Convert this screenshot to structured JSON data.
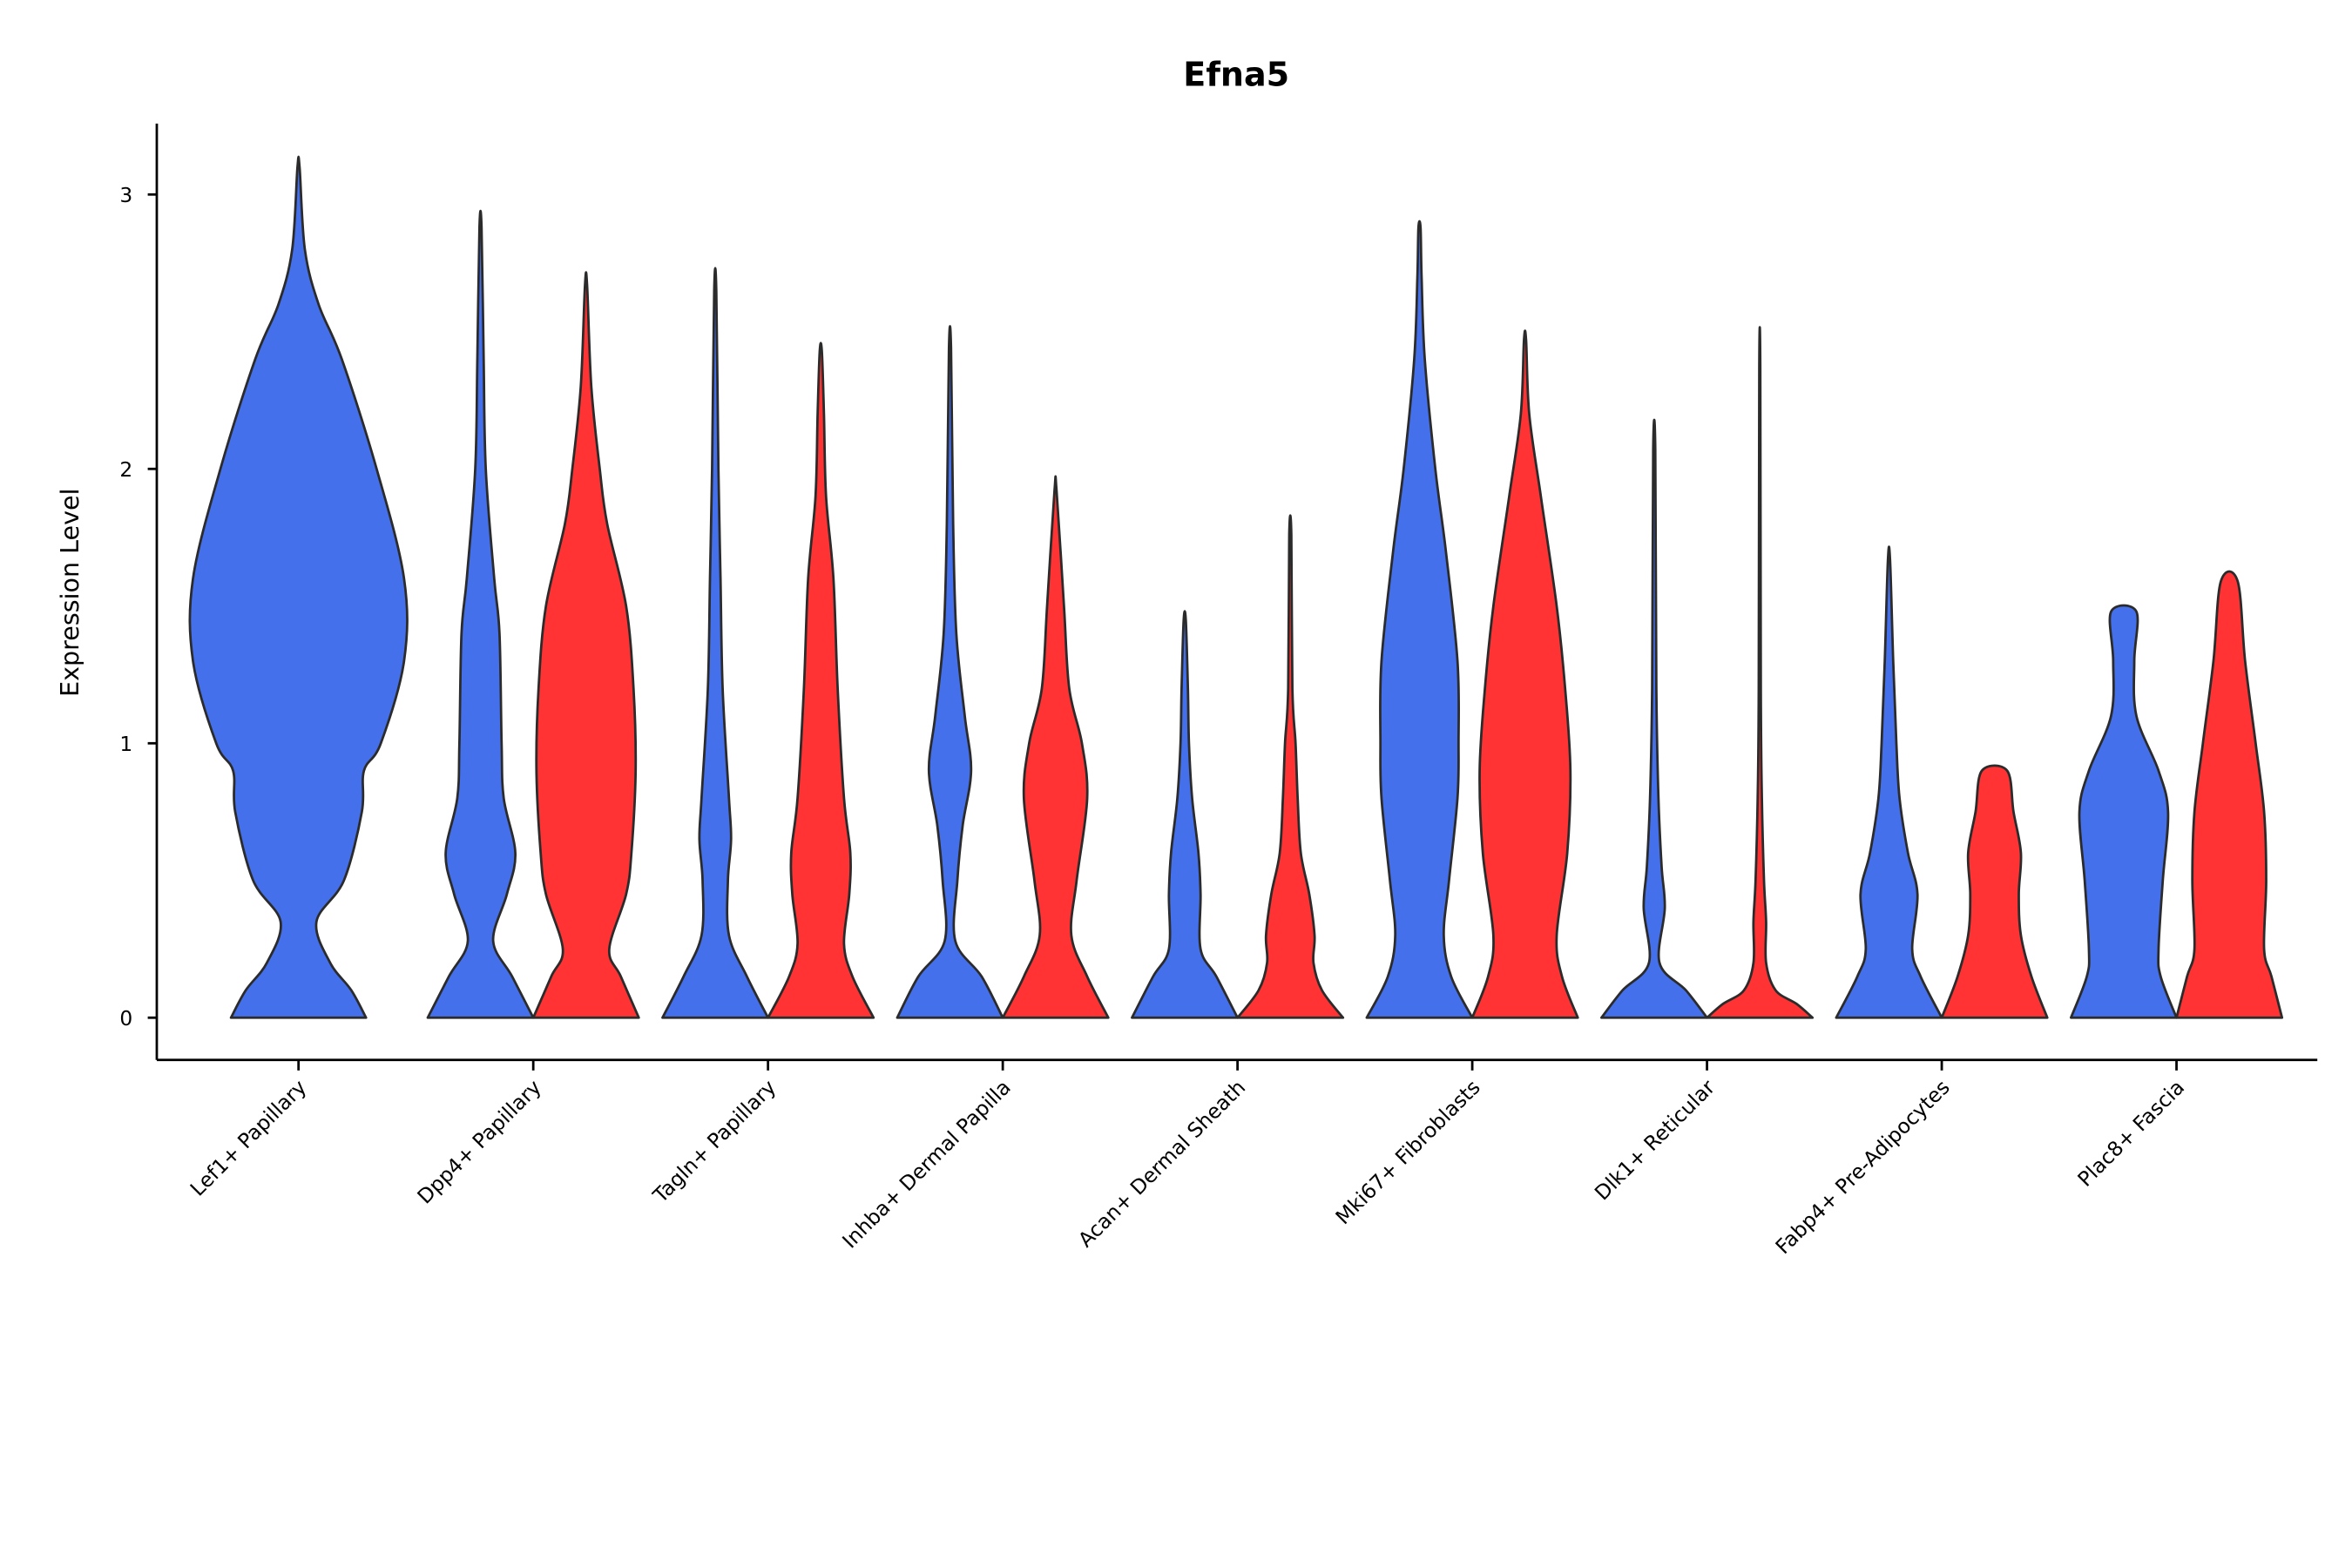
{
  "chart_data": {
    "type": "violin",
    "title": "Efna5",
    "xlabel": "",
    "ylabel": "Expression Level",
    "ylim": [
      -0.15,
      3.25
    ],
    "yticks": [
      0,
      1,
      2,
      3
    ],
    "grid": false,
    "legend": "none",
    "colors": {
      "blue": "#4470EC",
      "red": "#FF3333"
    },
    "note_density": "profiles are [expression value, relative half-width 0-1]",
    "categories": [
      {
        "label": "Lef1+ Papillary",
        "violins": [
          {
            "color": "blue",
            "max": 3.1,
            "profile": [
              [
                0,
                0.64
              ],
              [
                0.1,
                0.5
              ],
              [
                0.2,
                0.3
              ],
              [
                0.35,
                0.17
              ],
              [
                0.5,
                0.43
              ],
              [
                0.75,
                0.6
              ],
              [
                0.9,
                0.62
              ],
              [
                1.0,
                0.78
              ],
              [
                1.3,
                1.0
              ],
              [
                1.6,
                1.0
              ],
              [
                2.0,
                0.74
              ],
              [
                2.4,
                0.41
              ],
              [
                2.6,
                0.19
              ],
              [
                2.8,
                0.06
              ],
              [
                3.1,
                0.01
              ]
            ]
          }
        ]
      },
      {
        "label": "Dpp4+ Papillary",
        "violins": [
          {
            "color": "blue",
            "max": 2.88,
            "profile": [
              [
                0,
                0.5
              ],
              [
                0.15,
                0.3
              ],
              [
                0.28,
                0.12
              ],
              [
                0.45,
                0.25
              ],
              [
                0.6,
                0.33
              ],
              [
                0.8,
                0.22
              ],
              [
                1.0,
                0.2
              ],
              [
                1.4,
                0.18
              ],
              [
                1.6,
                0.13
              ],
              [
                2.0,
                0.05
              ],
              [
                2.4,
                0.03
              ],
              [
                2.88,
                0.01
              ]
            ]
          },
          {
            "color": "red",
            "max": 2.67,
            "profile": [
              [
                0,
                0.5
              ],
              [
                0.15,
                0.33
              ],
              [
                0.25,
                0.22
              ],
              [
                0.45,
                0.38
              ],
              [
                0.6,
                0.43
              ],
              [
                0.9,
                0.47
              ],
              [
                1.2,
                0.45
              ],
              [
                1.5,
                0.38
              ],
              [
                1.8,
                0.2
              ],
              [
                2.0,
                0.13
              ],
              [
                2.3,
                0.05
              ],
              [
                2.67,
                0.01
              ]
            ]
          }
        ]
      },
      {
        "label": "Tagln+ Papillary",
        "violins": [
          {
            "color": "blue",
            "max": 2.65,
            "profile": [
              [
                0,
                0.5
              ],
              [
                0.15,
                0.3
              ],
              [
                0.3,
                0.13
              ],
              [
                0.5,
                0.12
              ],
              [
                0.65,
                0.15
              ],
              [
                0.8,
                0.13
              ],
              [
                1.2,
                0.07
              ],
              [
                1.6,
                0.05
              ],
              [
                2.0,
                0.03
              ],
              [
                2.65,
                0.01
              ]
            ]
          },
          {
            "color": "red",
            "max": 2.43,
            "profile": [
              [
                0,
                0.5
              ],
              [
                0.15,
                0.3
              ],
              [
                0.27,
                0.22
              ],
              [
                0.45,
                0.27
              ],
              [
                0.6,
                0.28
              ],
              [
                0.8,
                0.22
              ],
              [
                1.2,
                0.16
              ],
              [
                1.6,
                0.12
              ],
              [
                1.9,
                0.05
              ],
              [
                2.2,
                0.03
              ],
              [
                2.43,
                0.01
              ]
            ]
          }
        ]
      },
      {
        "label": "Inhba+ Dermal Papilla",
        "violins": [
          {
            "color": "blue",
            "max": 2.44,
            "profile": [
              [
                0,
                0.5
              ],
              [
                0.15,
                0.3
              ],
              [
                0.28,
                0.05
              ],
              [
                0.5,
                0.07
              ],
              [
                0.7,
                0.12
              ],
              [
                0.9,
                0.2
              ],
              [
                1.1,
                0.14
              ],
              [
                1.4,
                0.06
              ],
              [
                1.8,
                0.03
              ],
              [
                2.44,
                0.01
              ]
            ]
          },
          {
            "color": "red",
            "max": 1.92,
            "profile": [
              [
                0,
                0.5
              ],
              [
                0.15,
                0.3
              ],
              [
                0.3,
                0.15
              ],
              [
                0.5,
                0.2
              ],
              [
                0.8,
                0.3
              ],
              [
                1.0,
                0.25
              ],
              [
                1.2,
                0.13
              ],
              [
                1.5,
                0.08
              ],
              [
                1.92,
                0.01
              ]
            ]
          }
        ]
      },
      {
        "label": "Acan+ Dermal Sheath",
        "violins": [
          {
            "color": "blue",
            "max": 1.45,
            "profile": [
              [
                0,
                0.5
              ],
              [
                0.15,
                0.3
              ],
              [
                0.25,
                0.15
              ],
              [
                0.45,
                0.15
              ],
              [
                0.6,
                0.13
              ],
              [
                0.8,
                0.07
              ],
              [
                1.0,
                0.04
              ],
              [
                1.2,
                0.03
              ],
              [
                1.45,
                0.01
              ]
            ]
          },
          {
            "color": "red",
            "max": 1.76,
            "profile": [
              [
                0,
                0.5
              ],
              [
                0.1,
                0.3
              ],
              [
                0.2,
                0.22
              ],
              [
                0.3,
                0.23
              ],
              [
                0.45,
                0.18
              ],
              [
                0.6,
                0.1
              ],
              [
                0.8,
                0.07
              ],
              [
                1.0,
                0.05
              ],
              [
                1.2,
                0.02
              ],
              [
                1.76,
                0.01
              ]
            ]
          }
        ]
      },
      {
        "label": "Mki67+ Fibroblasts",
        "violins": [
          {
            "color": "blue",
            "max": 2.88,
            "profile": [
              [
                0,
                0.5
              ],
              [
                0.15,
                0.3
              ],
              [
                0.3,
                0.23
              ],
              [
                0.5,
                0.28
              ],
              [
                0.8,
                0.36
              ],
              [
                1.0,
                0.37
              ],
              [
                1.3,
                0.36
              ],
              [
                1.7,
                0.25
              ],
              [
                2.0,
                0.15
              ],
              [
                2.4,
                0.05
              ],
              [
                2.7,
                0.02
              ],
              [
                2.88,
                0.01
              ]
            ]
          },
          {
            "color": "red",
            "max": 2.47,
            "profile": [
              [
                0,
                0.5
              ],
              [
                0.15,
                0.35
              ],
              [
                0.3,
                0.3
              ],
              [
                0.6,
                0.4
              ],
              [
                0.9,
                0.43
              ],
              [
                1.2,
                0.38
              ],
              [
                1.5,
                0.3
              ],
              [
                1.9,
                0.15
              ],
              [
                2.2,
                0.04
              ],
              [
                2.47,
                0.01
              ]
            ]
          }
        ]
      },
      {
        "label": "Dlk1+ Reticular",
        "violins": [
          {
            "color": "blue",
            "max": 2.07,
            "profile": [
              [
                0,
                0.5
              ],
              [
                0.1,
                0.3
              ],
              [
                0.2,
                0.05
              ],
              [
                0.4,
                0.1
              ],
              [
                0.55,
                0.07
              ],
              [
                0.8,
                0.04
              ],
              [
                1.2,
                0.02
              ],
              [
                2.07,
                0.01
              ]
            ]
          },
          {
            "color": "red",
            "max": 2.37,
            "profile": [
              [
                0,
                0.5
              ],
              [
                0.05,
                0.35
              ],
              [
                0.1,
                0.15
              ],
              [
                0.2,
                0.06
              ],
              [
                0.35,
                0.06
              ],
              [
                0.5,
                0.04
              ],
              [
                0.8,
                0.02
              ],
              [
                1.2,
                0.01
              ],
              [
                2.37,
                0.005
              ]
            ]
          }
        ]
      },
      {
        "label": "Fabp4+ Pre-Adipocytes",
        "violins": [
          {
            "color": "blue",
            "max": 1.67,
            "profile": [
              [
                0,
                0.5
              ],
              [
                0.15,
                0.3
              ],
              [
                0.25,
                0.22
              ],
              [
                0.45,
                0.27
              ],
              [
                0.6,
                0.18
              ],
              [
                0.8,
                0.1
              ],
              [
                1.0,
                0.07
              ],
              [
                1.3,
                0.04
              ],
              [
                1.67,
                0.01
              ]
            ]
          },
          {
            "color": "red",
            "max": 0.9,
            "profile": [
              [
                0,
                0.5
              ],
              [
                0.15,
                0.35
              ],
              [
                0.3,
                0.25
              ],
              [
                0.45,
                0.23
              ],
              [
                0.6,
                0.25
              ],
              [
                0.75,
                0.18
              ],
              [
                0.9,
                0.12
              ]
            ]
          }
        ]
      },
      {
        "label": "Plac8+ Fascia",
        "violins": [
          {
            "color": "blue",
            "max": 1.48,
            "profile": [
              [
                0,
                0.5
              ],
              [
                0.15,
                0.35
              ],
              [
                0.25,
                0.33
              ],
              [
                0.5,
                0.37
              ],
              [
                0.75,
                0.42
              ],
              [
                0.9,
                0.33
              ],
              [
                1.1,
                0.12
              ],
              [
                1.3,
                0.1
              ],
              [
                1.48,
                0.12
              ]
            ]
          },
          {
            "color": "red",
            "max": 1.59,
            "profile": [
              [
                0,
                0.5
              ],
              [
                0.15,
                0.4
              ],
              [
                0.25,
                0.33
              ],
              [
                0.5,
                0.35
              ],
              [
                0.75,
                0.33
              ],
              [
                1.0,
                0.25
              ],
              [
                1.3,
                0.15
              ],
              [
                1.59,
                0.08
              ]
            ]
          }
        ]
      }
    ]
  }
}
